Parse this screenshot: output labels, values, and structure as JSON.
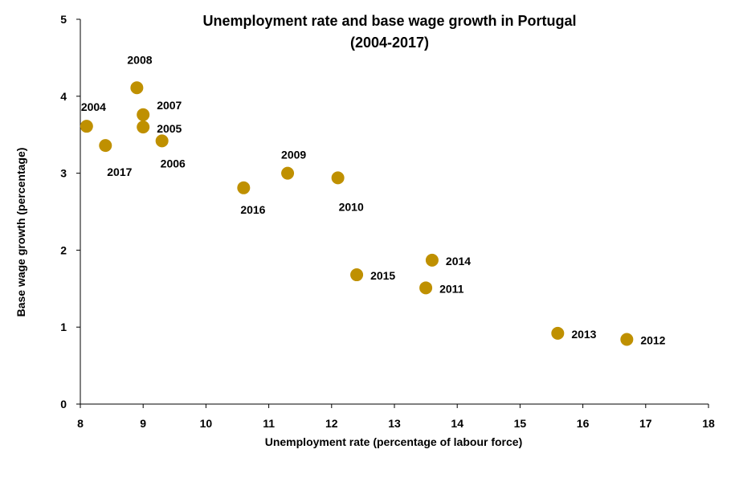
{
  "chart_data": {
    "type": "scatter",
    "title": "Unemployment rate and base wage growth in Portugal",
    "subtitle": "(2004-2017)",
    "xlabel": "Unemployment rate (percentage of labour force)",
    "ylabel": "Base wage growth (percentage)",
    "xlim": [
      8,
      18
    ],
    "ylim": [
      0,
      5
    ],
    "x_ticks": [
      "8",
      "9",
      "10",
      "11",
      "12",
      "13",
      "14",
      "15",
      "16",
      "17",
      "18"
    ],
    "y_ticks": [
      "0",
      "1",
      "2",
      "3",
      "4",
      "5"
    ],
    "grid": false,
    "marker_color": "#BF9000",
    "points": [
      {
        "label": "2004",
        "x": 8.1,
        "y": 3.61
      },
      {
        "label": "2005",
        "x": 9.0,
        "y": 3.6
      },
      {
        "label": "2006",
        "x": 9.3,
        "y": 3.42
      },
      {
        "label": "2007",
        "x": 9.0,
        "y": 3.76
      },
      {
        "label": "2008",
        "x": 8.9,
        "y": 4.11
      },
      {
        "label": "2009",
        "x": 11.3,
        "y": 3.0
      },
      {
        "label": "2010",
        "x": 12.1,
        "y": 2.94
      },
      {
        "label": "2011",
        "x": 13.5,
        "y": 1.51
      },
      {
        "label": "2012",
        "x": 16.7,
        "y": 0.84
      },
      {
        "label": "2013",
        "x": 15.6,
        "y": 0.92
      },
      {
        "label": "2014",
        "x": 13.6,
        "y": 1.87
      },
      {
        "label": "2015",
        "x": 12.4,
        "y": 1.68
      },
      {
        "label": "2016",
        "x": 10.6,
        "y": 2.81
      },
      {
        "label": "2017",
        "x": 8.4,
        "y": 3.36
      }
    ]
  }
}
